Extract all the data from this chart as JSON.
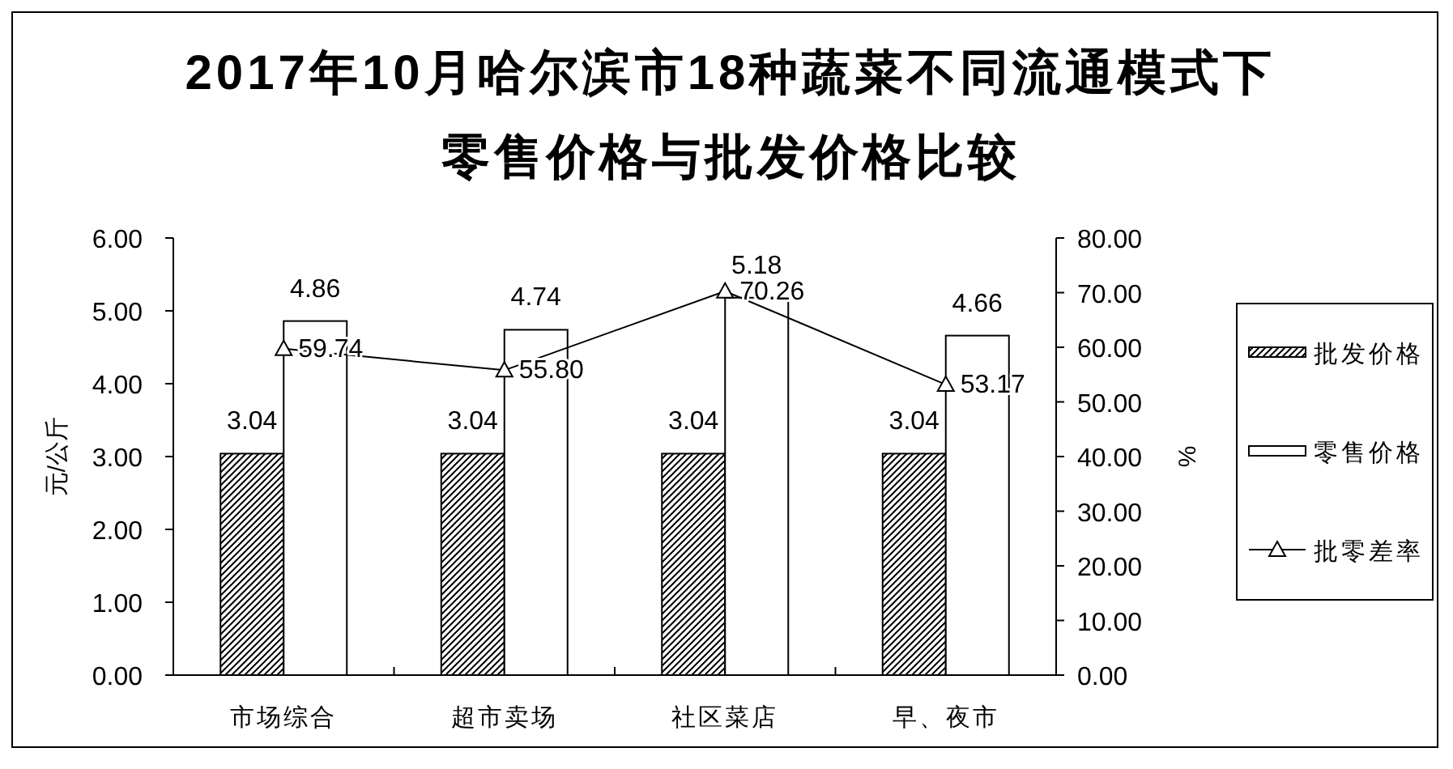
{
  "chart_data": {
    "type": "bar",
    "title": "2017年10月哈尔滨市18种蔬菜不同流通模式下零售价格与批发价格比较",
    "ylabel": "元/公斤",
    "y2label": "%",
    "categories": [
      "市场综合",
      "超市卖场",
      "社区菜店",
      "早、夜市"
    ],
    "series": [
      {
        "name": "批发价格",
        "color": "#000000",
        "values": [
          3.04,
          3.04,
          3.04,
          3.04
        ],
        "value_labels": [
          "3.04",
          "3.04",
          "3.04",
          "3.04"
        ]
      },
      {
        "name": "零售价格",
        "color": "#ffffff",
        "values": [
          4.86,
          4.74,
          5.18,
          4.66
        ],
        "value_labels": [
          "4.86",
          "4.74",
          "5.18",
          "4.66"
        ]
      },
      {
        "name": "批零差率",
        "type": "line",
        "axis": "y2",
        "color": "#000000",
        "marker": "triangle",
        "values": [
          59.74,
          55.8,
          70.26,
          53.17
        ],
        "value_labels": [
          "59.74",
          "55.80",
          "70.26",
          "53.17"
        ]
      }
    ],
    "ylim": [
      0,
      6
    ],
    "yticks": [
      {
        "value": 0,
        "label": "0.00"
      },
      {
        "value": 1,
        "label": "1.00"
      },
      {
        "value": 2,
        "label": "2.00"
      },
      {
        "value": 3,
        "label": "3.00"
      },
      {
        "value": 4,
        "label": "4.00"
      },
      {
        "value": 5,
        "label": "5.00"
      },
      {
        "value": 6,
        "label": "6.00"
      }
    ],
    "y2lim": [
      0,
      80
    ],
    "y2ticks": [
      {
        "value": 0,
        "label": "0.00"
      },
      {
        "value": 10,
        "label": "10.00"
      },
      {
        "value": 20,
        "label": "20.00"
      },
      {
        "value": 30,
        "label": "30.00"
      },
      {
        "value": 40,
        "label": "40.00"
      },
      {
        "value": 50,
        "label": "50.00"
      },
      {
        "value": 60,
        "label": "60.00"
      },
      {
        "value": 70,
        "label": "70.00"
      },
      {
        "value": 80,
        "label": "80.00"
      }
    ],
    "legend": "right"
  }
}
